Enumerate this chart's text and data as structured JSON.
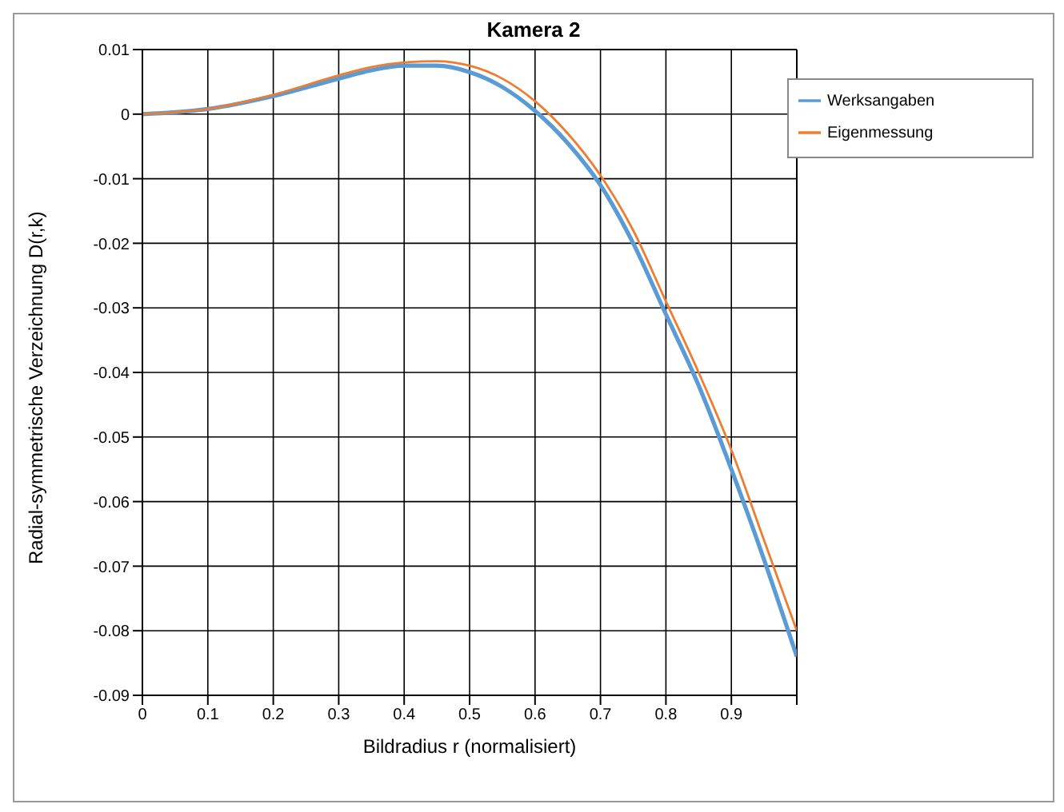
{
  "chart_data": {
    "type": "line",
    "title": "Kamera 2",
    "xlabel": "Bildradius r (normalisiert)",
    "ylabel": "Radial-symmetrische Verzeichnung D(r,k)",
    "x": [
      0,
      0.1,
      0.2,
      0.3,
      0.35,
      0.4,
      0.45,
      0.5,
      0.55,
      0.6,
      0.65,
      0.7,
      0.75,
      0.8,
      0.85,
      0.9,
      0.95,
      1.0
    ],
    "series": [
      {
        "name": "Werksangaben",
        "color": "#5b9bd5",
        "values": [
          0,
          0.0008,
          0.0028,
          0.0055,
          0.0068,
          0.0075,
          0.0075,
          0.0065,
          0.0042,
          0.0005,
          -0.0045,
          -0.011,
          -0.02,
          -0.031,
          -0.042,
          -0.055,
          -0.069,
          -0.084
        ]
      },
      {
        "name": "Eigenmessung",
        "color": "#ed7d31",
        "values": [
          0,
          0.0008,
          0.003,
          0.006,
          0.0073,
          0.008,
          0.0082,
          0.0075,
          0.0055,
          0.002,
          -0.003,
          -0.0095,
          -0.018,
          -0.029,
          -0.04,
          -0.052,
          -0.066,
          -0.08
        ]
      }
    ],
    "xlim": [
      0,
      1
    ],
    "xticks": [
      0,
      0.1,
      0.2,
      0.3,
      0.4,
      0.5,
      0.6,
      0.7,
      0.8,
      0.9,
      {
        "value": 1,
        "label": null
      }
    ],
    "ylim": [
      -0.09,
      0.01
    ],
    "yticks": [
      -0.09,
      -0.08,
      -0.07,
      -0.06,
      -0.05,
      -0.04,
      -0.03,
      -0.02,
      -0.01,
      0,
      0.01
    ],
    "grid": true,
    "legend": "top right",
    "marker": "none",
    "line_style": "solid"
  }
}
